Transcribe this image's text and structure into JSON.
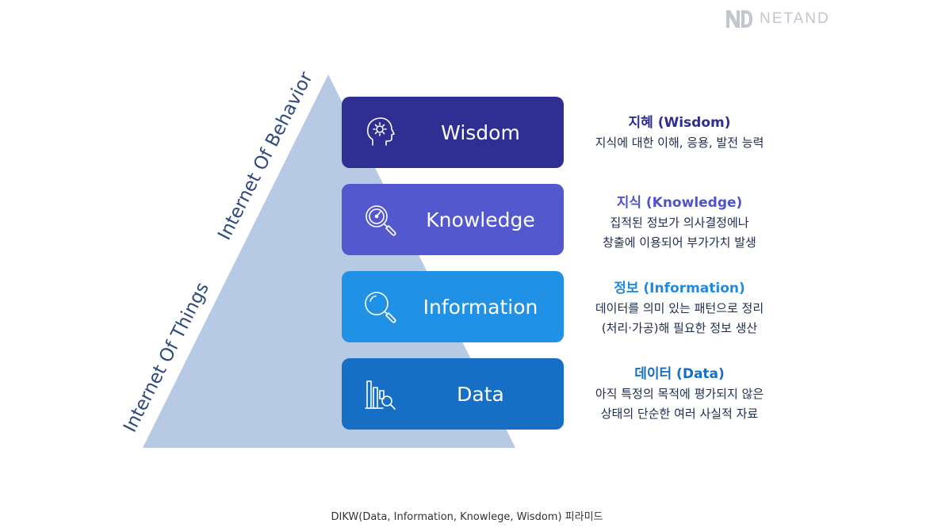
{
  "brand": {
    "logo_mark": "ND",
    "name": "NETAND"
  },
  "side_labels": {
    "behavior": "Internet Of Behavior",
    "things": "Internet Of Things"
  },
  "levels": [
    {
      "label": "Wisdom",
      "icon": "head-gear-icon",
      "color": "#2e2e93",
      "title": "지혜 (Wisdom)",
      "title_color": "#2e2e93",
      "lines": [
        "지식에 대한 이해, 응용, 발전 능력"
      ]
    },
    {
      "label": "Knowledge",
      "icon": "gauge-magnifier-icon",
      "color": "#5358cf",
      "title": "지식 (Knowledge)",
      "title_color": "#4e54c8",
      "lines": [
        "집적된 정보가 의사결정에나",
        "창출에 이용되어 부가가치 발생"
      ]
    },
    {
      "label": "Information",
      "icon": "magnifier-icon",
      "color": "#2191e6",
      "title": "정보 (Information)",
      "title_color": "#1f8ae0",
      "lines": [
        "데이터를 의미 있는 패턴으로 정리",
        "(처리·가공)해 필요한 정보 생산"
      ]
    },
    {
      "label": "Data",
      "icon": "bar-chart-magnifier-icon",
      "color": "#176fc5",
      "title": "데이터 (Data)",
      "title_color": "#176fc5",
      "lines": [
        "아직 특정의 목적에 평가되지 않은",
        "상태의 단순한 여러 사실적 자료"
      ]
    }
  ],
  "colors": {
    "pyramid": "#b7c9e3",
    "side_label": "#2f4a7f"
  },
  "caption": "DIKW(Data, Information, Knowlege, Wisdom) 피라미드"
}
